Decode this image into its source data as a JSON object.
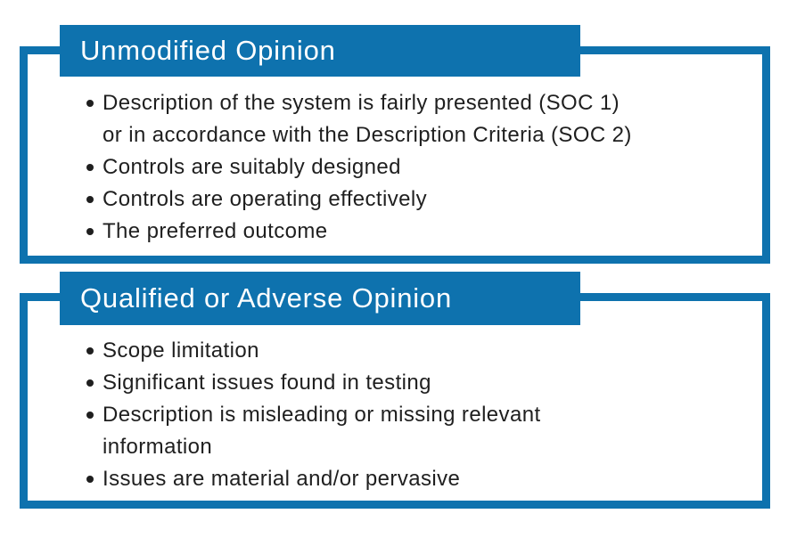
{
  "page": {
    "background": "#ffffff"
  },
  "colors": {
    "accent_blue": "#0e72ae",
    "header_text": "#ffffff",
    "body_text": "#1f1f1f"
  },
  "boxes": [
    {
      "title": "Unmodified Opinion",
      "bullets": [
        "Description of the system is fairly presented (SOC 1)\nor in accordance with the Description Criteria (SOC 2)",
        "Controls are suitably designed",
        "Controls are operating effectively",
        "The preferred outcome"
      ]
    },
    {
      "title": "Qualified or Adverse Opinion",
      "bullets": [
        "Scope limitation",
        "Significant issues found in testing",
        "Description is misleading or missing relevant\ninformation",
        "Issues are material and/or pervasive"
      ]
    }
  ]
}
